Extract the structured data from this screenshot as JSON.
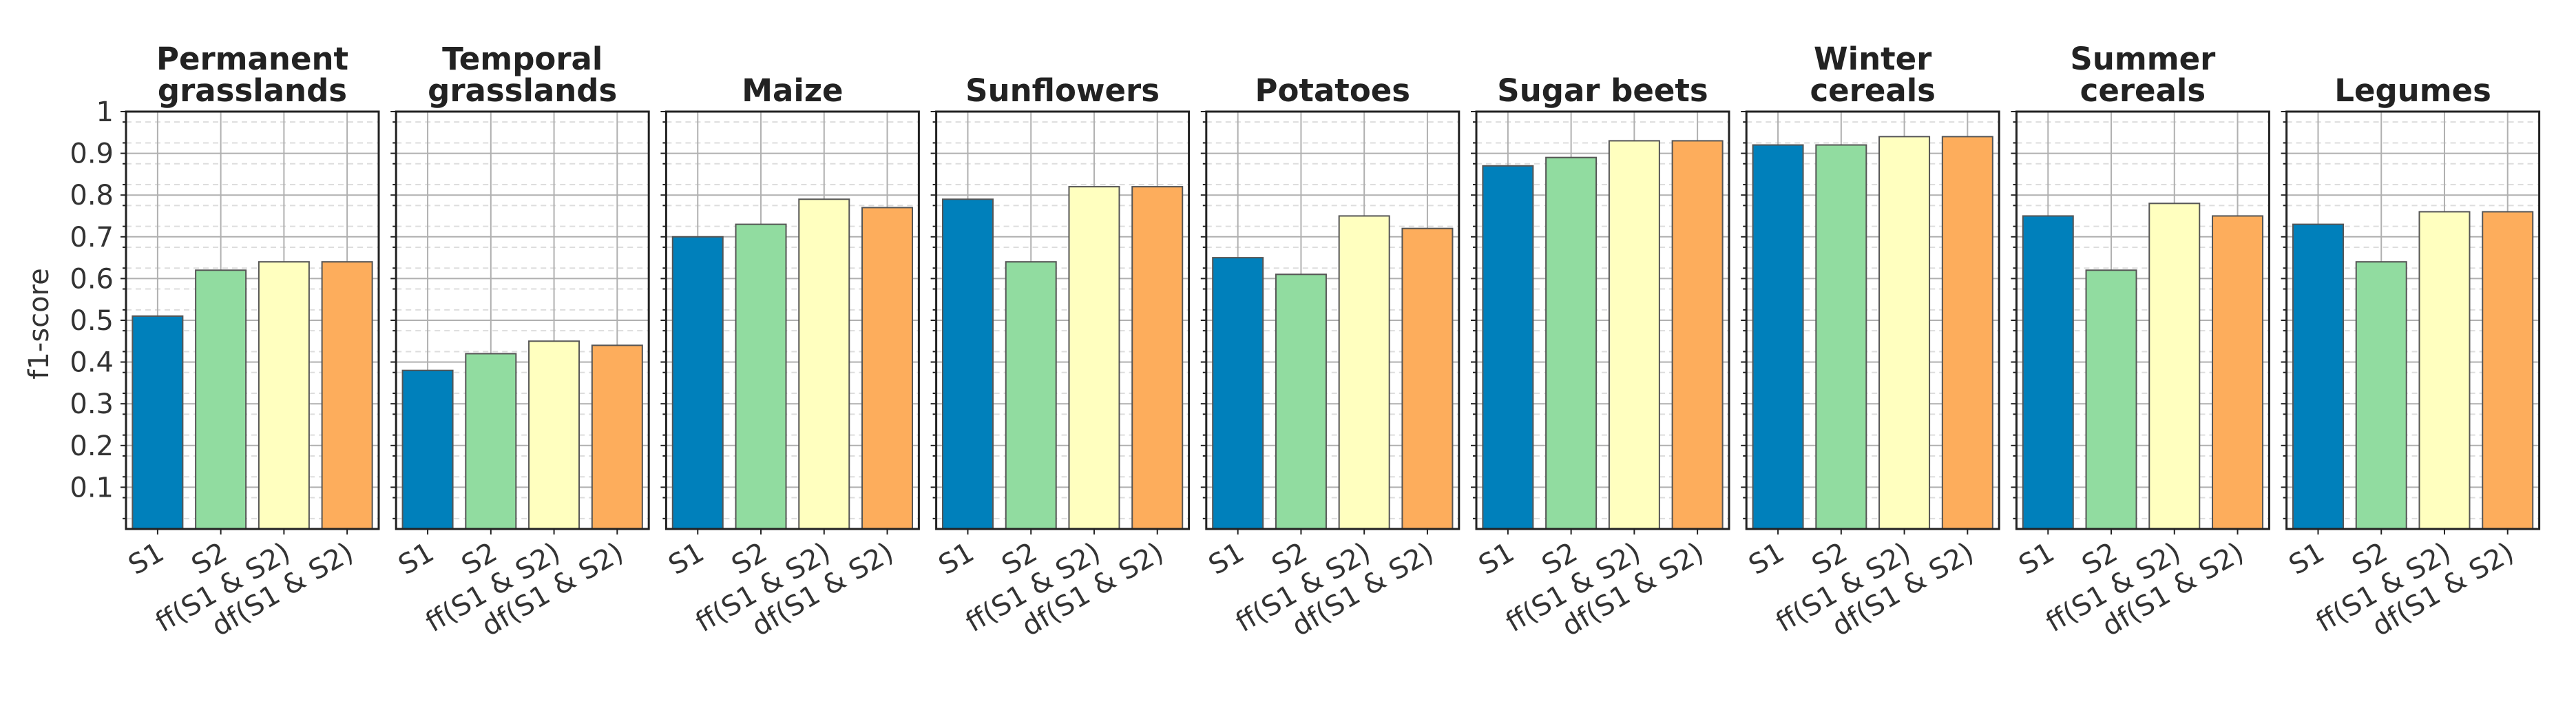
{
  "chart_data": {
    "type": "bar",
    "ylabel": "f1-score",
    "ylim": [
      0,
      1
    ],
    "yticks": [
      "0.1",
      "0.2",
      "0.3",
      "0.4",
      "0.5",
      "0.6",
      "0.7",
      "0.8",
      "0.9",
      "1"
    ],
    "grid": true,
    "categories": [
      "S1",
      "S2",
      "ff(S1 & S2)",
      "df(S1 & S2)"
    ],
    "colors": [
      "#0080bb",
      "#91dca0",
      "#ffffbf",
      "#fdad5c"
    ],
    "panels": [
      {
        "title_lines": [
          "Permanent",
          "grasslands"
        ],
        "values": [
          0.51,
          0.62,
          0.64,
          0.64
        ]
      },
      {
        "title_lines": [
          "Temporal",
          "grasslands"
        ],
        "values": [
          0.38,
          0.42,
          0.45,
          0.44
        ]
      },
      {
        "title_lines": [
          "Maize"
        ],
        "values": [
          0.7,
          0.73,
          0.79,
          0.77
        ]
      },
      {
        "title_lines": [
          "Sunflowers"
        ],
        "values": [
          0.79,
          0.64,
          0.82,
          0.82
        ]
      },
      {
        "title_lines": [
          "Potatoes"
        ],
        "values": [
          0.65,
          0.61,
          0.75,
          0.72
        ]
      },
      {
        "title_lines": [
          "Sugar beets"
        ],
        "values": [
          0.87,
          0.89,
          0.93,
          0.93
        ]
      },
      {
        "title_lines": [
          "Winter",
          "cereals"
        ],
        "values": [
          0.92,
          0.92,
          0.94,
          0.94
        ]
      },
      {
        "title_lines": [
          "Summer",
          "cereals"
        ],
        "values": [
          0.75,
          0.62,
          0.78,
          0.75
        ]
      },
      {
        "title_lines": [
          "Legumes"
        ],
        "values": [
          0.73,
          0.64,
          0.76,
          0.76
        ]
      }
    ]
  }
}
